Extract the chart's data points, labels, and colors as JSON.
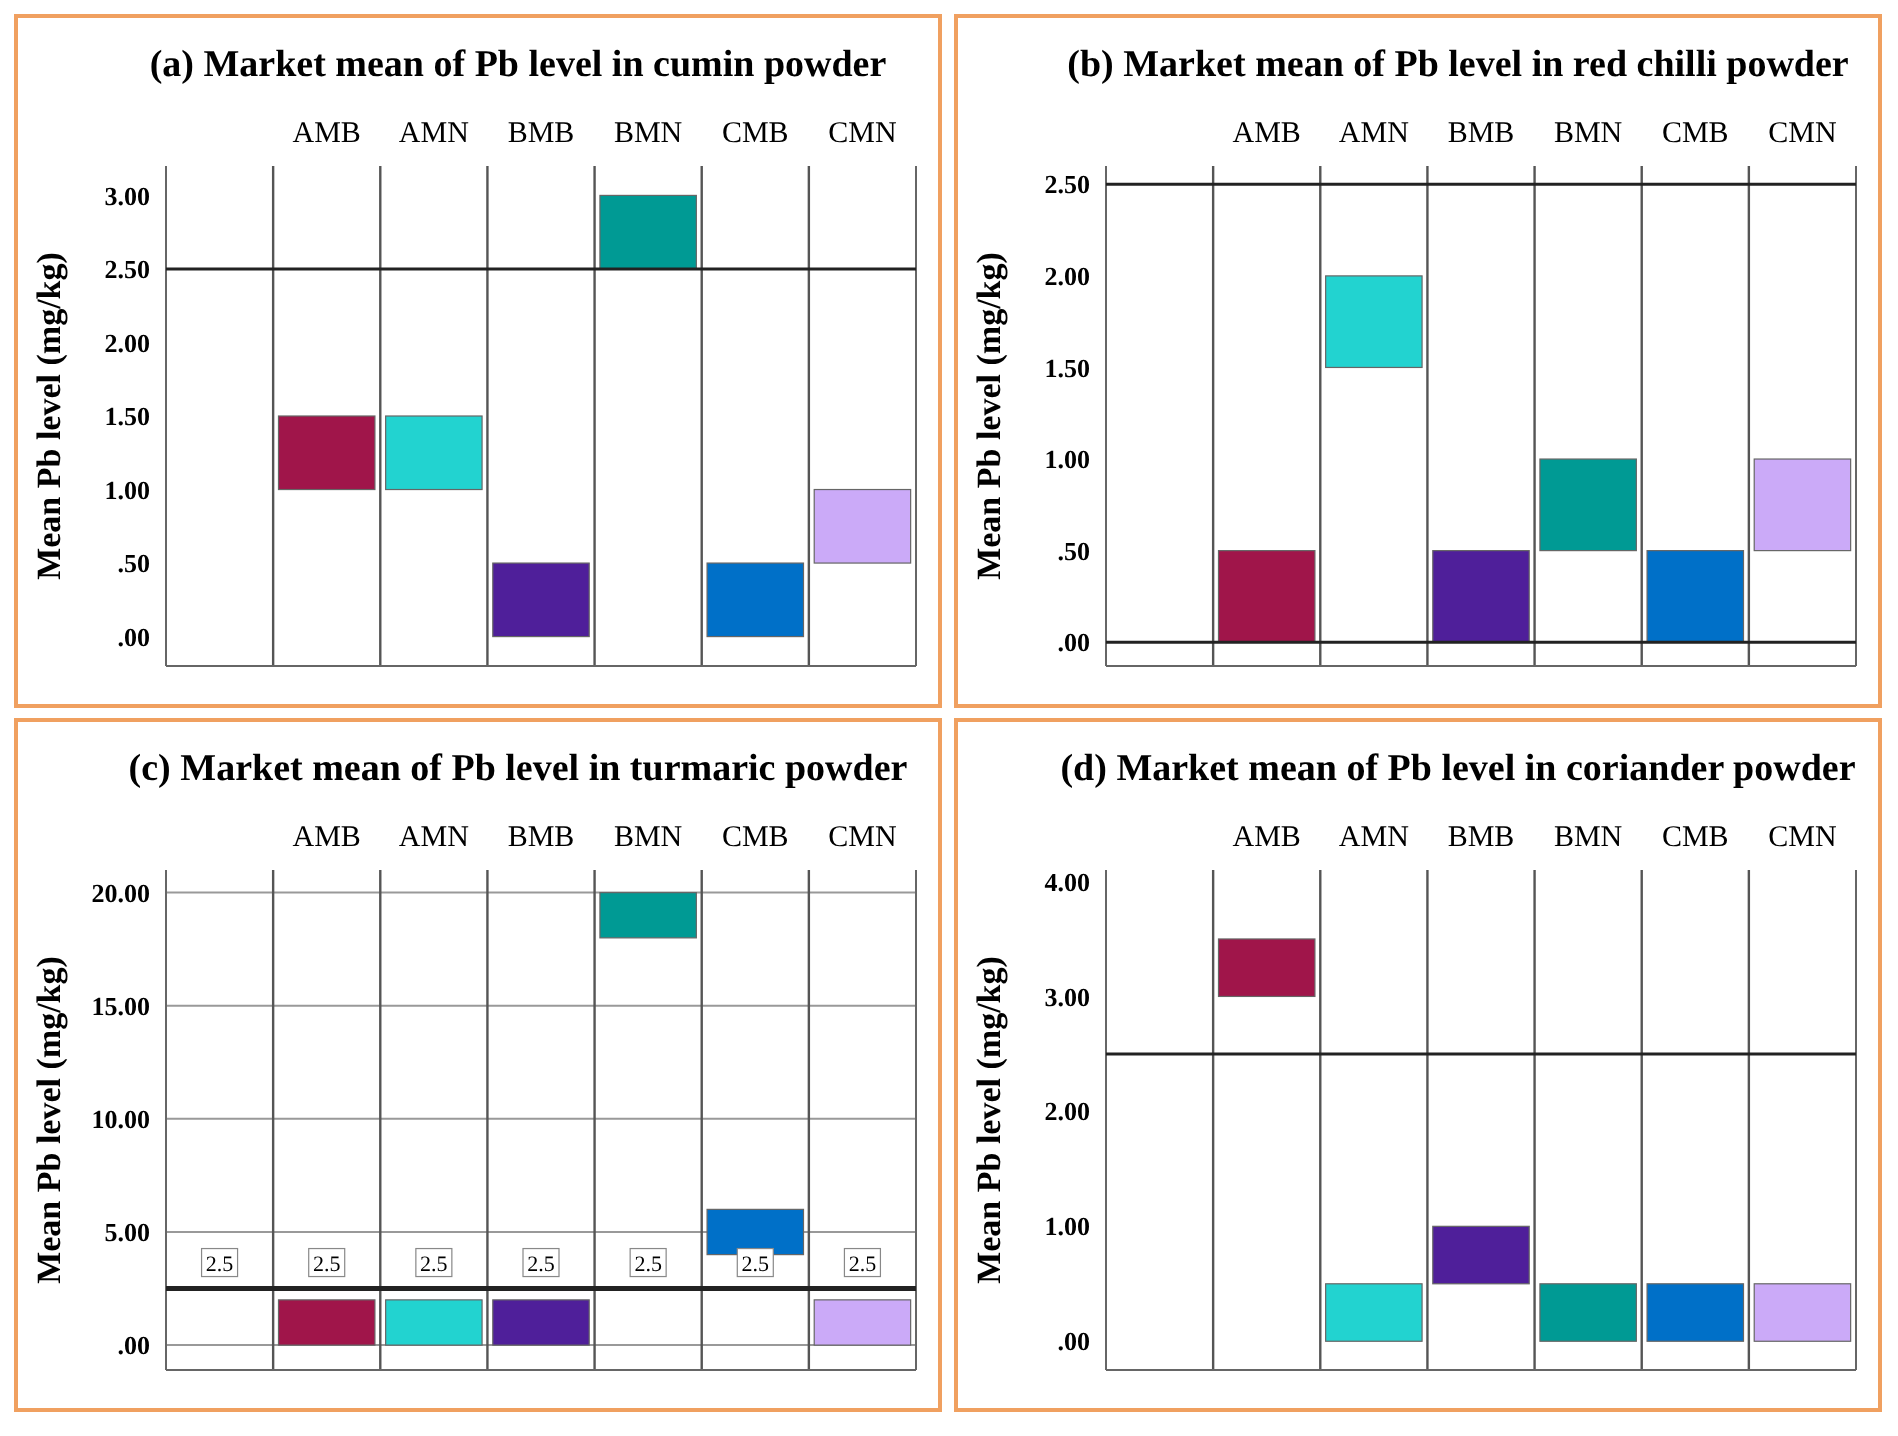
{
  "chart_data": [
    {
      "type": "bar",
      "title": "(a) Market mean of Pb level in cumin powder",
      "ylabel": "Mean Pb level (mg/kg)",
      "categories": [
        null,
        "AMB",
        "AMN",
        "BMB",
        "BMN",
        "CMB",
        "CMN"
      ],
      "values": [
        null,
        0.5,
        0.5,
        0.5,
        0.5,
        0.5,
        0.5
      ],
      "base": [
        null,
        1.0,
        1.0,
        0,
        2.5,
        0,
        0.5
      ],
      "colors": [
        null,
        "#a0154a",
        "#22d3d0",
        "#4f1f9a",
        "#009a94",
        "#0070c8",
        "#cbaaf8"
      ],
      "ylim": [
        -0.2,
        3.2
      ],
      "yticks": [
        {
          "value": 0,
          "label": ".00"
        },
        {
          "value": 0.5,
          "label": ".50"
        },
        {
          "value": 1,
          "label": "1.00"
        },
        {
          "value": 1.5,
          "label": "1.50"
        },
        {
          "value": 2,
          "label": "2.00"
        },
        {
          "value": 2.5,
          "label": "2.50"
        },
        {
          "value": 3,
          "label": "3.00"
        }
      ],
      "ref_lines": [
        {
          "axis": "y",
          "value": 2.5
        }
      ],
      "grid": false
    },
    {
      "type": "bar",
      "title": "(b) Market mean of Pb level in red chilli powder",
      "ylabel": "Mean Pb level (mg/kg)",
      "categories": [
        null,
        "AMB",
        "AMN",
        "BMB",
        "BMN",
        "CMB",
        "CMN"
      ],
      "values": [
        null,
        0.5,
        0.5,
        0.5,
        0.5,
        0.5,
        0.5
      ],
      "base": [
        null,
        0,
        1.5,
        0,
        0.5,
        0,
        0.5
      ],
      "colors": [
        null,
        "#a0154a",
        "#22d3d0",
        "#4f1f9a",
        "#009a94",
        "#0070c8",
        "#cbaaf8"
      ],
      "ylim": [
        -0.13,
        2.6
      ],
      "yticks": [
        {
          "value": 0,
          "label": ".00"
        },
        {
          "value": 0.5,
          "label": ".50"
        },
        {
          "value": 1,
          "label": "1.00"
        },
        {
          "value": 1.5,
          "label": "1.50"
        },
        {
          "value": 2,
          "label": "2.00"
        },
        {
          "value": 2.5,
          "label": "2.50"
        }
      ],
      "ref_lines": [
        {
          "axis": "y",
          "value": 2.5
        },
        {
          "axis": "y",
          "value": 0
        }
      ],
      "grid": false
    },
    {
      "type": "bar",
      "title": "(c) Market mean of Pb level in turmaric powder",
      "ylabel": "Mean Pb level (mg/kg)",
      "categories": [
        null,
        "AMB",
        "AMN",
        "BMB",
        "BMN",
        "CMB",
        "CMN"
      ],
      "values": [
        null,
        2,
        2,
        2,
        2,
        2,
        2
      ],
      "base": [
        null,
        0,
        0,
        0,
        18,
        4,
        0
      ],
      "colors": [
        null,
        "#a0154a",
        "#22d3d0",
        "#4f1f9a",
        "#009a94",
        "#0070c8",
        "#cbaaf8"
      ],
      "ylim": [
        -1.1,
        21
      ],
      "yticks": [
        {
          "value": 0,
          "label": ".00"
        },
        {
          "value": 5,
          "label": "5.00"
        },
        {
          "value": 10,
          "label": "10.00"
        },
        {
          "value": 15,
          "label": "15.00"
        },
        {
          "value": 20,
          "label": "20.00"
        }
      ],
      "ref_lines": [
        {
          "axis": "y",
          "value": 2.5,
          "label": "2.5"
        }
      ],
      "grid": "y"
    },
    {
      "type": "bar",
      "title": "(d) Market mean of Pb level in coriander powder",
      "ylabel": "Mean Pb level (mg/kg)",
      "categories": [
        null,
        "AMB",
        "AMN",
        "BMB",
        "BMN",
        "CMB",
        "CMN"
      ],
      "values": [
        null,
        0.5,
        0.5,
        0.5,
        0.5,
        0.5,
        0.5
      ],
      "base": [
        null,
        3.0,
        0,
        0.5,
        0,
        0,
        0
      ],
      "colors": [
        null,
        "#a0154a",
        "#22d3d0",
        "#4f1f9a",
        "#009a94",
        "#0070c8",
        "#cbaaf8"
      ],
      "ylim": [
        -0.25,
        4.1
      ],
      "yticks": [
        {
          "value": 0,
          "label": ".00"
        },
        {
          "value": 1,
          "label": "1.00"
        },
        {
          "value": 2,
          "label": "2.00"
        },
        {
          "value": 3,
          "label": "3.00"
        },
        {
          "value": 4,
          "label": "4.00"
        }
      ],
      "ref_lines": [
        {
          "axis": "y",
          "value": 2.5
        }
      ],
      "grid": false
    }
  ]
}
